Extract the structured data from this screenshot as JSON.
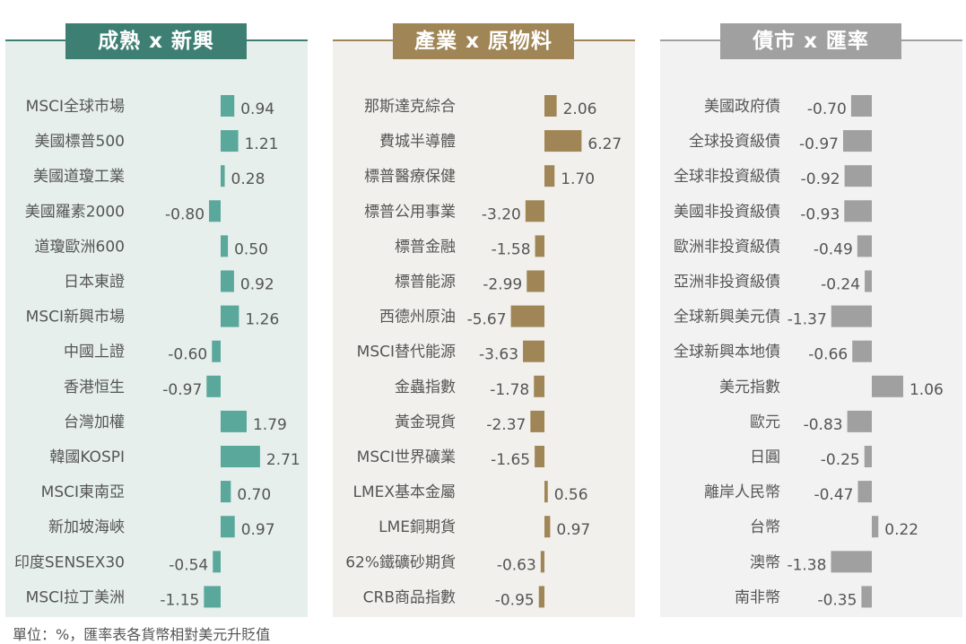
{
  "footnote": "單位：%，匯率表各貨幣相對美元升貶值",
  "colors": {
    "panel1_header": "#3e7f74",
    "panel1_bar": "#5aa89b",
    "panel1_bg": "#e6efec",
    "panel2_header": "#a08656",
    "panel2_bar": "#a08656",
    "panel2_bg": "#f2f0ec",
    "panel3_header": "#a0a0a0",
    "panel3_bar": "#a0a0a0",
    "panel3_bg": "#f2f2f2"
  },
  "chart_data": [
    {
      "type": "bar",
      "title": "成熟 x 新興",
      "categories": [
        "MSCI全球市場",
        "美國標普500",
        "美國道瓊工業",
        "美國羅素2000",
        "道瓊歐洲600",
        "日本東證",
        "MSCI新興市場",
        "中國上證",
        "香港恒生",
        "台灣加權",
        "韓國KOSPI",
        "MSCI東南亞",
        "新加坡海峽",
        "印度SENSEX30",
        "MSCI拉丁美洲"
      ],
      "values": [
        0.94,
        1.21,
        0.28,
        -0.8,
        0.5,
        0.92,
        1.26,
        -0.6,
        -0.97,
        1.79,
        2.71,
        0.7,
        0.97,
        -0.54,
        -1.15
      ],
      "labels": [
        "0.94",
        "1.21",
        "0.28",
        "-0.80",
        "0.50",
        "0.92",
        "1.26",
        "-0.60",
        "-0.97",
        "1.79",
        "2.71",
        "0.70",
        "0.97",
        "-0.54",
        "-1.15"
      ]
    },
    {
      "type": "bar",
      "title": "產業 x 原物料",
      "categories": [
        "那斯達克綜合",
        "費城半導體",
        "標普醫療保健",
        "標普公用事業",
        "標普金融",
        "標普能源",
        "西德州原油",
        "MSCI替代能源",
        "金蟲指數",
        "黃金現貨",
        "MSCI世界礦業",
        "LMEX基本金屬",
        "LME銅期貨",
        "62%鐵礦砂期貨",
        "CRB商品指數"
      ],
      "values": [
        2.06,
        6.27,
        1.7,
        -3.2,
        -1.58,
        -2.99,
        -5.67,
        -3.63,
        -1.78,
        -2.37,
        -1.65,
        0.56,
        0.97,
        -0.63,
        -0.95
      ],
      "labels": [
        "2.06",
        "6.27",
        "1.70",
        "-3.20",
        "-1.58",
        "-2.99",
        "-5.67",
        "-3.63",
        "-1.78",
        "-2.37",
        "-1.65",
        "0.56",
        "0.97",
        "-0.63",
        "-0.95"
      ]
    },
    {
      "type": "bar",
      "title": "債市 x 匯率",
      "categories": [
        "美國政府債",
        "全球投資級債",
        "全球非投資級債",
        "美國非投資級債",
        "歐洲非投資級債",
        "亞洲非投資級債",
        "全球新興美元債",
        "全球新興本地債",
        "美元指數",
        "歐元",
        "日圓",
        "離岸人民幣",
        "台幣",
        "澳幣",
        "南非幣"
      ],
      "values": [
        -0.7,
        -0.97,
        -0.92,
        -0.93,
        -0.49,
        -0.24,
        -1.37,
        -0.66,
        1.06,
        -0.83,
        -0.25,
        -0.47,
        0.22,
        -1.38,
        -0.35
      ],
      "labels": [
        "-0.70",
        "-0.97",
        "-0.92",
        "-0.93",
        "-0.49",
        "-0.24",
        "-1.37",
        "-0.66",
        "1.06",
        "-0.83",
        "-0.25",
        "-0.47",
        "0.22",
        "-1.38",
        "-0.35"
      ]
    }
  ]
}
